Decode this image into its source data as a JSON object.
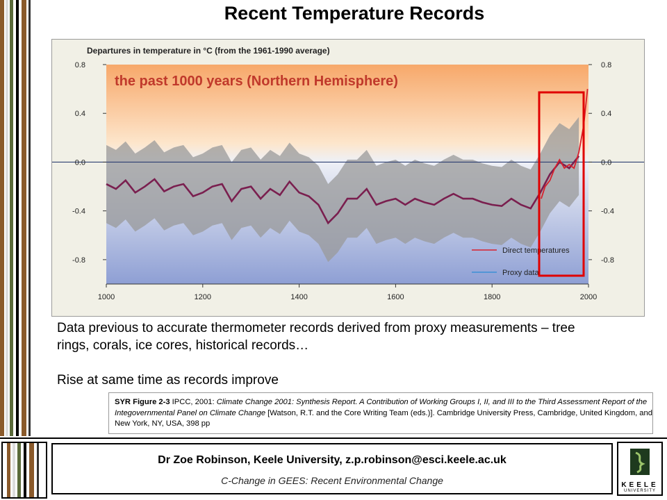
{
  "slide": {
    "title": "Recent Temperature Records",
    "paragraph_1": "Data previous to accurate thermometer records derived from proxy measurements – tree rings, corals, ice cores, historical records…",
    "paragraph_2": "Rise at same time as records improve"
  },
  "citation": {
    "label": "SYR Figure 2-3",
    "lead": " IPCC, 2001: ",
    "title": "Climate Change 2001: Synthesis Report. A Contribution of Working Groups I, II, and III to the Third Assessment Report of the Integovernmental Panel on Climate Change",
    "tail": " [Watson, R.T. and the Core Writing Team (eds.)]. Cambridge University Press, Cambridge, United Kingdom, and New York, NY, USA, 398 pp"
  },
  "footer": {
    "author": "Dr Zoe Robinson, Keele University, z.p.robinson@esci.keele.ac.uk",
    "course": "C-Change in GEES: Recent Environmental Change",
    "logo_word": "KEELE",
    "logo_sub": "UNIVERSITY"
  },
  "colors": {
    "stripes": [
      "#8a5a2b",
      "#e0e0e0",
      "#5a6a3a",
      "#ffffff",
      "#8a5a2b",
      "#333333"
    ],
    "direct": "#d8202c",
    "proxy": "#3b8fd6",
    "smoothed": "#7a1f4f",
    "highlight": "#e00000"
  },
  "chart_data": {
    "type": "line",
    "title": "Departures in temperature in °C (from the 1961-1990 average)",
    "subtitle": "the past 1000 years (Northern Hemisphere)",
    "xlabel": "",
    "ylabel": "",
    "xlim": [
      1000,
      2000
    ],
    "ylim": [
      -1.0,
      0.8
    ],
    "x_ticks": [
      1000,
      1200,
      1400,
      1600,
      1800,
      2000
    ],
    "y_ticks": [
      "0.8",
      "0.4",
      "0.0",
      "-0.4",
      "-0.8"
    ],
    "y_tick_values": [
      0.8,
      0.4,
      0.0,
      -0.4,
      -0.8
    ],
    "legend": [
      "Direct temperatures",
      "Proxy data"
    ],
    "legend_position": "bottom-right",
    "series": [
      {
        "name": "Proxy data",
        "x": [
          1000,
          1020,
          1040,
          1060,
          1080,
          1100,
          1120,
          1140,
          1160,
          1180,
          1200,
          1220,
          1240,
          1260,
          1280,
          1300,
          1320,
          1340,
          1360,
          1380,
          1400,
          1420,
          1440,
          1460,
          1480,
          1500,
          1520,
          1540,
          1560,
          1580,
          1600,
          1620,
          1640,
          1660,
          1680,
          1700,
          1720,
          1740,
          1760,
          1780,
          1800,
          1820,
          1840,
          1860,
          1880,
          1900,
          1920,
          1940,
          1960,
          1980
        ],
        "values": [
          -0.18,
          -0.22,
          -0.15,
          -0.25,
          -0.2,
          -0.14,
          -0.24,
          -0.2,
          -0.18,
          -0.28,
          -0.25,
          -0.2,
          -0.18,
          -0.32,
          -0.22,
          -0.2,
          -0.3,
          -0.22,
          -0.27,
          -0.16,
          -0.25,
          -0.28,
          -0.35,
          -0.5,
          -0.42,
          -0.3,
          -0.3,
          -0.22,
          -0.35,
          -0.32,
          -0.3,
          -0.35,
          -0.3,
          -0.33,
          -0.35,
          -0.3,
          -0.26,
          -0.3,
          -0.3,
          -0.33,
          -0.35,
          -0.36,
          -0.3,
          -0.35,
          -0.38,
          -0.25,
          -0.1,
          0.0,
          -0.05,
          0.05
        ]
      },
      {
        "name": "Direct temperatures",
        "x": [
          1902,
          1910,
          1920,
          1930,
          1940,
          1950,
          1960,
          1970,
          1980,
          1990,
          1998
        ],
        "values": [
          -0.3,
          -0.2,
          -0.15,
          -0.05,
          0.02,
          -0.05,
          -0.02,
          -0.05,
          0.08,
          0.3,
          0.6
        ]
      }
    ]
  }
}
